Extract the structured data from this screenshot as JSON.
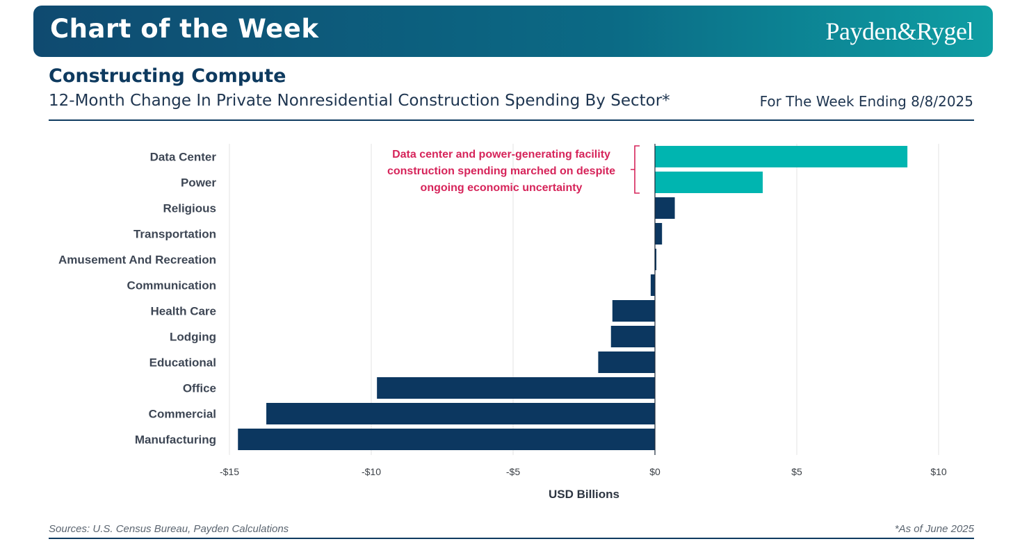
{
  "header": {
    "banner_title": "Chart of the Week",
    "logo_text": "Payden&Rygel",
    "title": "Constructing Compute",
    "subtitle": "12-Month Change In Private Nonresidential Construction Spending By Sector*",
    "week_ending": "For The Week Ending 8/8/2025"
  },
  "footer": {
    "sources": "Sources: U.S. Census Bureau, Payden Calculations",
    "note": "*As of June 2025"
  },
  "colors": {
    "highlight": "#00b5b0",
    "bar": "#0c3760",
    "annotation": "#d6245a",
    "grid": "#e3e3e3"
  },
  "chart_data": {
    "type": "bar",
    "orientation": "horizontal",
    "categories": [
      "Data Center",
      "Power",
      "Religious",
      "Transportation",
      "Amusement And Recreation",
      "Communication",
      "Health Care",
      "Lodging",
      "Educational",
      "Office",
      "Commercial",
      "Manufacturing"
    ],
    "values": [
      8.9,
      3.8,
      0.7,
      0.25,
      0.05,
      -0.15,
      -1.5,
      -1.55,
      -2.0,
      -9.8,
      -13.7,
      -14.7
    ],
    "highlighted": [
      "Data Center",
      "Power"
    ],
    "xlim": [
      -15,
      10
    ],
    "xticks": [
      -15,
      -10,
      -5,
      0,
      5,
      10
    ],
    "xtick_labels": [
      "-$15",
      "-$10",
      "-$5",
      "$0",
      "$5",
      "$10"
    ],
    "xlabel": "USD Billions",
    "grid": "vertical",
    "annotation": {
      "lines": [
        "Data center and power-generating facility",
        "construction spending marched on despite",
        "ongoing economic uncertainty"
      ],
      "targets": [
        "Data Center",
        "Power"
      ]
    }
  }
}
